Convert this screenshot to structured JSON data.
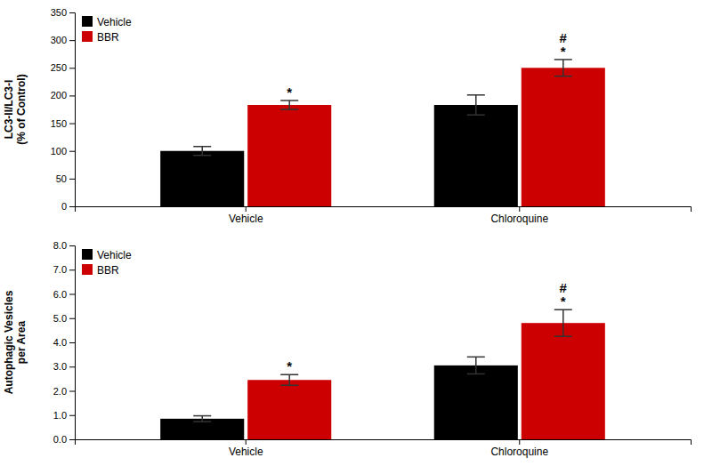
{
  "chart_data": [
    {
      "type": "bar",
      "categories": [
        "Vehicle",
        "Chloroquine"
      ],
      "series": [
        {
          "name": "Vehicle",
          "color": "#000000",
          "values": [
            100,
            183
          ],
          "errors": [
            8,
            18
          ]
        },
        {
          "name": "BBR",
          "color": "#cc0000",
          "values": [
            183,
            250
          ],
          "errors": [
            8,
            15
          ]
        }
      ],
      "ylabel": "LC3-II/LC3-I\n(% of Control)",
      "ylim": [
        0,
        350
      ],
      "yticks": [
        0,
        50,
        100,
        150,
        200,
        250,
        300,
        350
      ],
      "legend": "upper left",
      "annotations": [
        {
          "text": "*",
          "category": "Vehicle",
          "series": "BBR"
        },
        {
          "text": "*",
          "category": "Chloroquine",
          "series": "BBR"
        },
        {
          "text": "#",
          "category": "Chloroquine",
          "series": "BBR"
        }
      ]
    },
    {
      "type": "bar",
      "categories": [
        "Vehicle",
        "Chloroquine"
      ],
      "series": [
        {
          "name": "Vehicle",
          "color": "#000000",
          "values": [
            0.85,
            3.05
          ],
          "errors": [
            0.12,
            0.35
          ]
        },
        {
          "name": "BBR",
          "color": "#cc0000",
          "values": [
            2.45,
            4.8
          ],
          "errors": [
            0.22,
            0.55
          ]
        }
      ],
      "ylabel": "Autophagic Vesicles\nper Area",
      "ylim": [
        0,
        8.0
      ],
      "yticks": [
        {
          "value": 0.0,
          "label": "0.0"
        },
        {
          "value": 1.0,
          "label": "1.0"
        },
        {
          "value": 2.0,
          "label": "2.0"
        },
        {
          "value": 3.0,
          "label": "3.0"
        },
        {
          "value": 4.0,
          "label": "4.0"
        },
        {
          "value": 5.0,
          "label": "5.0"
        },
        {
          "value": 6.0,
          "label": "6.0"
        },
        {
          "value": 7.0,
          "label": "7.0"
        },
        {
          "value": 8.0,
          "label": "8.0"
        }
      ],
      "legend": "upper left",
      "annotations": [
        {
          "text": "*",
          "category": "Vehicle",
          "series": "BBR"
        },
        {
          "text": "*",
          "category": "Chloroquine",
          "series": "BBR"
        },
        {
          "text": "#",
          "category": "Chloroquine",
          "series": "BBR"
        }
      ]
    }
  ]
}
